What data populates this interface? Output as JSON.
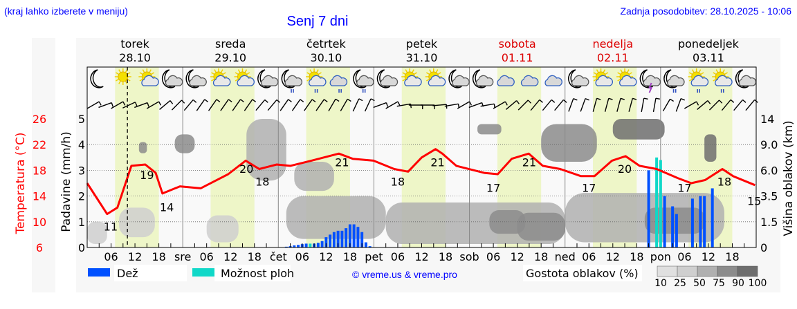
{
  "header": {
    "region_hint": "(kraj lahko izberete v meniju)",
    "title": "Senj 7 dni",
    "updated": "Zadnja posodobitev: 28.10.2025 - 10:06"
  },
  "days": [
    {
      "name": "torek",
      "date": "28.10",
      "abbr": "",
      "weekend": false
    },
    {
      "name": "sreda",
      "date": "29.10",
      "abbr": "sre",
      "weekend": false
    },
    {
      "name": "četrtek",
      "date": "30.10",
      "abbr": "čet",
      "weekend": false
    },
    {
      "name": "petek",
      "date": "31.10",
      "abbr": "pet",
      "weekend": false
    },
    {
      "name": "sobota",
      "date": "01.11",
      "abbr": "sob",
      "weekend": true
    },
    {
      "name": "nedelja",
      "date": "02.11",
      "abbr": "ned",
      "weekend": true
    },
    {
      "name": "ponedeljek",
      "date": "03.11",
      "abbr": "pon",
      "weekend": false
    }
  ],
  "colors": {
    "temperature": "#ff0000",
    "rain": "#0050ff",
    "showers": "#10d8c8",
    "daylight": "#eef6c8",
    "title": "#0000ff",
    "weekend": "#dd0000"
  },
  "legend": {
    "rain_label": "Dež",
    "showers_label": "Možnost ploh",
    "credit": "© vreme.us & vreme.pro",
    "cloud_density_label": "Gostota oblakov (%)",
    "cloud_density_levels": [
      "10",
      "25",
      "50",
      "75",
      "90",
      "100"
    ]
  },
  "chart_data": {
    "type": "meteogram",
    "title": "Senj 7 dni",
    "x_unit": "hours from Tue 28.10 00:00",
    "xlim": [
      0,
      168
    ],
    "hour_ticks": [
      "06",
      "12",
      "18"
    ],
    "current_time_hour": 10.1,
    "daylight_hours": [
      7,
      18
    ],
    "axes": {
      "temperature": {
        "label": "Temperatura (°C)",
        "ticks": [
          "26",
          "22",
          "18",
          "14",
          "10",
          "6"
        ],
        "range": [
          6,
          26
        ]
      },
      "precipitation": {
        "label": "Padavine (mm/h)",
        "ticks": [
          "5",
          "4",
          "3",
          "2",
          "1",
          "0"
        ],
        "range": [
          0,
          5
        ]
      },
      "cloud_height": {
        "label": "Višina oblakov (km)",
        "ticks": [
          "14",
          "9.0",
          "6.0",
          "3.5",
          "1.5",
          "0"
        ]
      }
    },
    "temperature_series": [
      [
        0,
        16.0
      ],
      [
        5,
        11.2
      ],
      [
        7.6,
        12.2
      ],
      [
        11.1,
        18.7
      ],
      [
        14.6,
        18.9
      ],
      [
        17.2,
        17.6
      ],
      [
        18.9,
        14.4
      ],
      [
        23.3,
        15.5
      ],
      [
        28.5,
        15.2
      ],
      [
        35.4,
        17.4
      ],
      [
        39.8,
        19.5
      ],
      [
        43.2,
        18.2
      ],
      [
        47.6,
        18.9
      ],
      [
        51,
        18.7
      ],
      [
        56.3,
        19.5
      ],
      [
        63.2,
        20.6
      ],
      [
        66.7,
        19.8
      ],
      [
        71.9,
        19.5
      ],
      [
        77.1,
        18.2
      ],
      [
        80.6,
        17.8
      ],
      [
        84,
        20.0
      ],
      [
        87.5,
        21.3
      ],
      [
        89.2,
        20.6
      ],
      [
        92.7,
        18.7
      ],
      [
        99.7,
        17.6
      ],
      [
        103.1,
        17.4
      ],
      [
        106.6,
        19.8
      ],
      [
        110.9,
        20.6
      ],
      [
        114.4,
        18.7
      ],
      [
        118.8,
        18.2
      ],
      [
        124,
        17.1
      ],
      [
        127.4,
        17.1
      ],
      [
        131.8,
        19.5
      ],
      [
        135.2,
        20.2
      ],
      [
        138.7,
        18.7
      ],
      [
        143,
        18.2
      ],
      [
        148.3,
        16.8
      ],
      [
        151.7,
        16.0
      ],
      [
        155.2,
        16.5
      ],
      [
        159.5,
        18.2
      ],
      [
        162.2,
        17.1
      ],
      [
        167.7,
        15.7
      ]
    ],
    "temperature_labels": [
      {
        "hour": 5.9,
        "value": "11"
      },
      {
        "hour": 15,
        "value": "19"
      },
      {
        "hour": 20,
        "value": "14"
      },
      {
        "hour": 40,
        "value": "20"
      },
      {
        "hour": 44,
        "value": "18"
      },
      {
        "hour": 64,
        "value": "21"
      },
      {
        "hour": 78,
        "value": "18"
      },
      {
        "hour": 88,
        "value": "21"
      },
      {
        "hour": 102,
        "value": "17"
      },
      {
        "hour": 111,
        "value": "21"
      },
      {
        "hour": 126,
        "value": "17"
      },
      {
        "hour": 135,
        "value": "20"
      },
      {
        "hour": 150,
        "value": "17"
      },
      {
        "hour": 160,
        "value": "18"
      },
      {
        "hour": 167.5,
        "value": "15"
      }
    ],
    "rain_bars": [
      [
        50,
        0.03
      ],
      [
        51,
        0.05
      ],
      [
        52,
        0.08
      ],
      [
        53,
        0.1
      ],
      [
        54,
        0.13
      ],
      [
        55,
        0.15
      ],
      [
        57,
        0.15
      ],
      [
        58,
        0.18
      ],
      [
        59,
        0.25
      ],
      [
        60,
        0.4
      ],
      [
        61,
        0.5
      ],
      [
        62,
        0.6
      ],
      [
        63,
        0.65
      ],
      [
        64,
        0.65
      ],
      [
        65,
        0.75
      ],
      [
        66,
        0.9
      ],
      [
        67,
        0.9
      ],
      [
        68,
        0.8
      ],
      [
        69,
        0.6
      ],
      [
        70,
        0.2
      ],
      [
        71,
        0.05
      ],
      [
        141,
        3.0
      ],
      [
        145,
        2.0
      ],
      [
        147,
        1.6
      ],
      [
        148,
        1.3
      ],
      [
        152,
        1.9
      ],
      [
        154,
        2.0
      ],
      [
        155,
        2.0
      ],
      [
        157,
        2.3
      ]
    ],
    "shower_bars": [
      [
        56,
        0.15
      ],
      [
        143,
        3.5
      ],
      [
        144,
        3.4
      ]
    ],
    "cloud_patches": [
      {
        "h": [
          0,
          5
        ],
        "km": [
          0.2,
          1.5
        ],
        "density": 25
      },
      {
        "h": [
          8,
          17
        ],
        "km": [
          0.6,
          2.6
        ],
        "density": 25
      },
      {
        "h": [
          13,
          15
        ],
        "km": [
          8,
          9.5
        ],
        "density": 75
      },
      {
        "h": [
          22,
          27
        ],
        "km": [
          8,
          11
        ],
        "density": 75
      },
      {
        "h": [
          30,
          38
        ],
        "km": [
          0.3,
          2
        ],
        "density": 25
      },
      {
        "h": [
          40,
          50
        ],
        "km": [
          5,
          14
        ],
        "density": 50
      },
      {
        "h": [
          52,
          62
        ],
        "km": [
          4,
          7
        ],
        "density": 50
      },
      {
        "h": [
          50,
          75
        ],
        "km": [
          0.5,
          3.5
        ],
        "density": 50
      },
      {
        "h": [
          75,
          120
        ],
        "km": [
          0.2,
          3
        ],
        "density": 50
      },
      {
        "h": [
          98,
          104
        ],
        "km": [
          11,
          13
        ],
        "density": 75
      },
      {
        "h": [
          101,
          110
        ],
        "km": [
          0.8,
          2.4
        ],
        "density": 75
      },
      {
        "h": [
          108,
          120
        ],
        "km": [
          0.4,
          2.2
        ],
        "density": 75
      },
      {
        "h": [
          114,
          128
        ],
        "km": [
          7,
          13
        ],
        "density": 75
      },
      {
        "h": [
          120,
          160
        ],
        "km": [
          0.3,
          3.8
        ],
        "density": 50
      },
      {
        "h": [
          132,
          145
        ],
        "km": [
          10,
          14
        ],
        "density": 90
      },
      {
        "h": [
          140,
          155
        ],
        "km": [
          0.8,
          2.6
        ],
        "density": 75
      },
      {
        "h": [
          155,
          158
        ],
        "km": [
          7,
          11
        ],
        "density": 90
      }
    ],
    "weather_icons": [
      "moon",
      "sun",
      "sun-cloud",
      "moon-cloud",
      "moon-cloud",
      "sun-cloud",
      "sun-cloud",
      "moon-cloud",
      "moon-cloud-rain",
      "sun-cloud-rain",
      "cloud-rain",
      "moon-cloud-rain",
      "moon-cloud",
      "sun-cloud",
      "sun-cloud",
      "moon-cloud",
      "moon-cloud",
      "cloud",
      "cloud",
      "cloud",
      "moon-cloud",
      "sun-cloud",
      "sun-cloud",
      "moon-cloud-lightning",
      "moon-cloud-rain",
      "sun-cloud-rain",
      "sun-cloud-rain",
      "moon-cloud"
    ],
    "wind_direction_deg": [
      60,
      70,
      60,
      65,
      70,
      60,
      50,
      45,
      40,
      35,
      35,
      35,
      35,
      35,
      40,
      40,
      35,
      35,
      35,
      35,
      30,
      30,
      25,
      25,
      70,
      60,
      80,
      90,
      90,
      85,
      80,
      60,
      70,
      80,
      60,
      50,
      45,
      40,
      40,
      40,
      20,
      20,
      15,
      15,
      15,
      15,
      10,
      10,
      30,
      20,
      60,
      50,
      45,
      40,
      40,
      40
    ]
  }
}
